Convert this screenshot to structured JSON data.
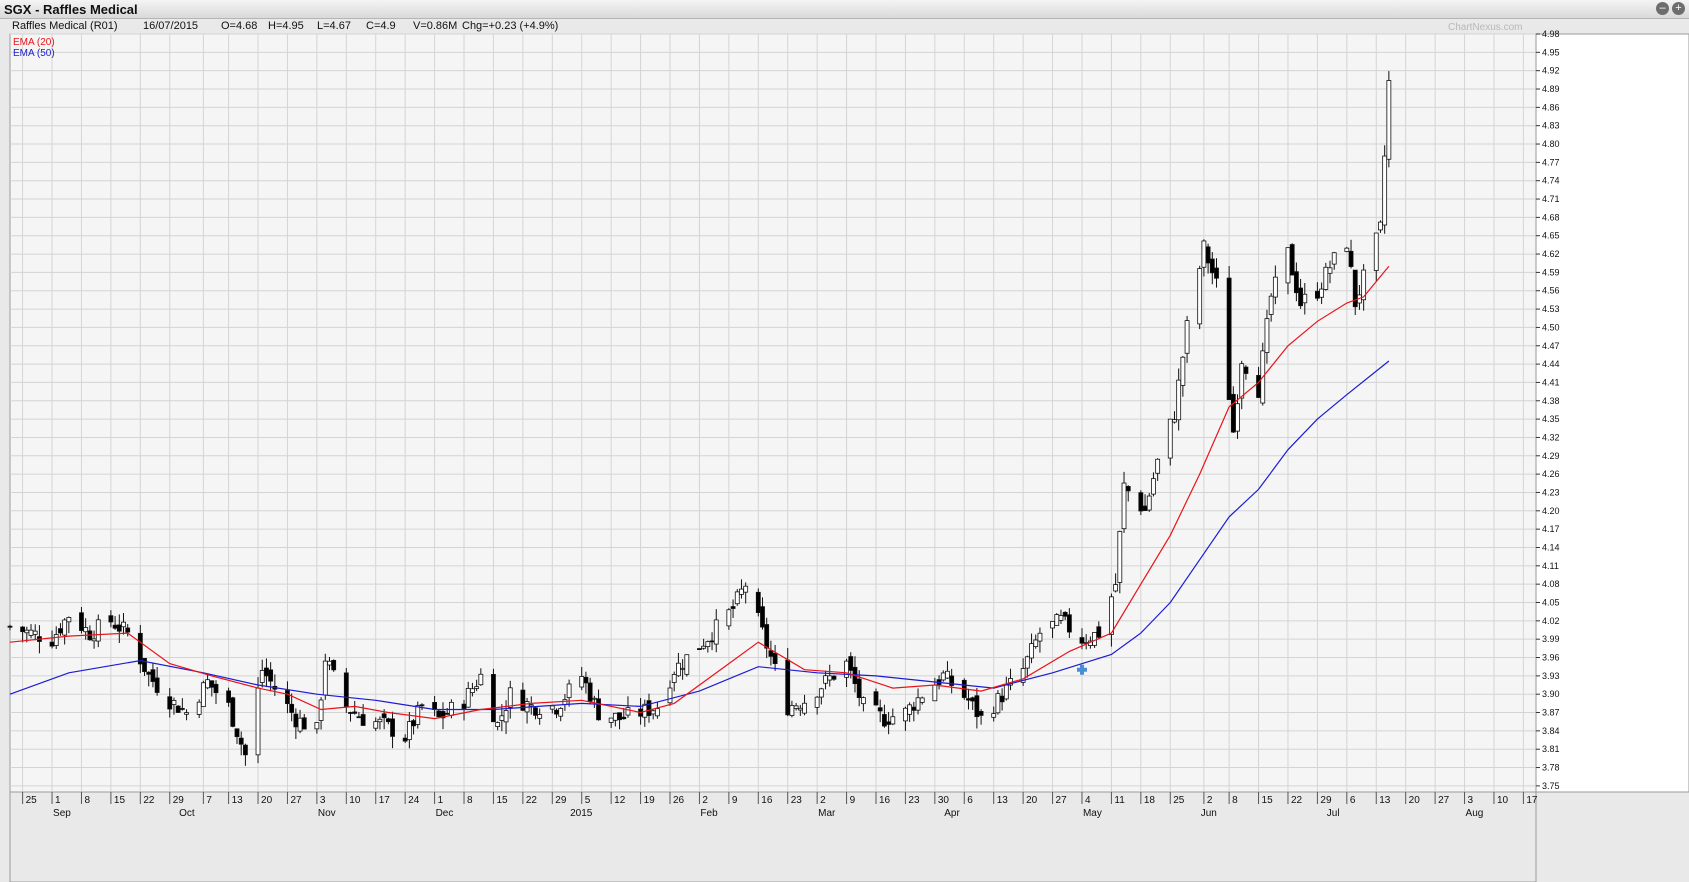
{
  "window": {
    "title": "SGX - Raffles Medical",
    "btn_min": "–",
    "btn_max": "+"
  },
  "info": {
    "name": "Raffles Medical (R01)",
    "date": "16/07/2015",
    "open": "O=4.68",
    "high": "H=4.95",
    "low": "L=4.67",
    "close": "C=4.9",
    "volume": "V=0.86M",
    "change": "Chg=+0.23 (+4.9%)"
  },
  "watermark": "ChartNexus.com",
  "colors": {
    "up": "#ffffff",
    "down": "#000000",
    "ema20": "#e8141a",
    "ema50": "#1c1cd2",
    "grid": "#d4d4d4",
    "bg": "#f5f5f5"
  },
  "chart_data": {
    "type": "candlestick",
    "ylim": [
      3.74,
      4.98
    ],
    "y_ticks": [
      "4.98",
      "4.95",
      "4.92",
      "4.89",
      "4.86",
      "4.83",
      "4.80",
      "4.77",
      "4.74",
      "4.71",
      "4.68",
      "4.65",
      "4.62",
      "4.59",
      "4.56",
      "4.53",
      "4.50",
      "4.47",
      "4.44",
      "4.41",
      "4.38",
      "4.35",
      "4.32",
      "4.29",
      "4.26",
      "4.23",
      "4.20",
      "4.17",
      "4.14",
      "4.11",
      "4.08",
      "4.05",
      "4.02",
      "3.99",
      "3.96",
      "3.93",
      "3.90",
      "3.87",
      "3.84",
      "3.81",
      "3.78",
      "3.75"
    ],
    "x_ticks": [
      {
        "day": "25",
        "date": "2014-08-25"
      },
      {
        "day": "1",
        "date": "2014-09-01"
      },
      {
        "day": "8",
        "date": "2014-09-08"
      },
      {
        "day": "15",
        "date": "2014-09-15"
      },
      {
        "day": "22",
        "date": "2014-09-22"
      },
      {
        "day": "29",
        "date": "2014-09-29"
      },
      {
        "day": "7",
        "date": "2014-10-07"
      },
      {
        "day": "13",
        "date": "2014-10-13"
      },
      {
        "day": "20",
        "date": "2014-10-20"
      },
      {
        "day": "27",
        "date": "2014-10-27"
      },
      {
        "day": "3",
        "date": "2014-11-03"
      },
      {
        "day": "10",
        "date": "2014-11-10"
      },
      {
        "day": "17",
        "date": "2014-11-17"
      },
      {
        "day": "24",
        "date": "2014-11-24"
      },
      {
        "day": "1",
        "date": "2014-12-01"
      },
      {
        "day": "8",
        "date": "2014-12-08"
      },
      {
        "day": "15",
        "date": "2014-12-15"
      },
      {
        "day": "22",
        "date": "2014-12-22"
      },
      {
        "day": "29",
        "date": "2014-12-29"
      },
      {
        "day": "5",
        "date": "2015-01-05"
      },
      {
        "day": "12",
        "date": "2015-01-12"
      },
      {
        "day": "19",
        "date": "2015-01-19"
      },
      {
        "day": "26",
        "date": "2015-01-26"
      },
      {
        "day": "2",
        "date": "2015-02-02"
      },
      {
        "day": "9",
        "date": "2015-02-09"
      },
      {
        "day": "16",
        "date": "2015-02-16"
      },
      {
        "day": "23",
        "date": "2015-02-23"
      },
      {
        "day": "2",
        "date": "2015-03-02"
      },
      {
        "day": "9",
        "date": "2015-03-09"
      },
      {
        "day": "16",
        "date": "2015-03-16"
      },
      {
        "day": "23",
        "date": "2015-03-23"
      },
      {
        "day": "30",
        "date": "2015-03-30"
      },
      {
        "day": "6",
        "date": "2015-04-06"
      },
      {
        "day": "13",
        "date": "2015-04-13"
      },
      {
        "day": "20",
        "date": "2015-04-20"
      },
      {
        "day": "27",
        "date": "2015-04-27"
      },
      {
        "day": "4",
        "date": "2015-05-04"
      },
      {
        "day": "11",
        "date": "2015-05-11"
      },
      {
        "day": "18",
        "date": "2015-05-18"
      },
      {
        "day": "25",
        "date": "2015-05-25"
      },
      {
        "day": "2",
        "date": "2015-06-02"
      },
      {
        "day": "8",
        "date": "2015-06-08"
      },
      {
        "day": "15",
        "date": "2015-06-15"
      },
      {
        "day": "22",
        "date": "2015-06-22"
      },
      {
        "day": "29",
        "date": "2015-06-29"
      },
      {
        "day": "6",
        "date": "2015-07-06"
      },
      {
        "day": "13",
        "date": "2015-07-13"
      },
      {
        "day": "20",
        "date": "2015-07-20"
      },
      {
        "day": "27",
        "date": "2015-07-27"
      },
      {
        "day": "3",
        "date": "2015-08-03"
      },
      {
        "day": "10",
        "date": "2015-08-10"
      },
      {
        "day": "17",
        "date": "2015-08-17"
      }
    ],
    "months": [
      {
        "label": "Sep",
        "date": "2014-09-01"
      },
      {
        "label": "Oct",
        "date": "2014-10-01"
      },
      {
        "label": "Nov",
        "date": "2014-11-03"
      },
      {
        "label": "Dec",
        "date": "2014-12-01"
      },
      {
        "label": "2015",
        "date": "2015-01-02"
      },
      {
        "label": "Feb",
        "date": "2015-02-02"
      },
      {
        "label": "Mar",
        "date": "2015-03-02"
      },
      {
        "label": "Apr",
        "date": "2015-04-01"
      },
      {
        "label": "May",
        "date": "2015-05-04"
      },
      {
        "label": "Jun",
        "date": "2015-06-01"
      },
      {
        "label": "Jul",
        "date": "2015-07-01"
      },
      {
        "label": "Aug",
        "date": "2015-08-03"
      }
    ],
    "x_start": "2014-08-22",
    "x_end": "2015-08-20",
    "legend": [
      {
        "name": "EMA (20)",
        "color": "#e8141a"
      },
      {
        "name": "EMA (50)",
        "color": "#1c1cd2"
      }
    ],
    "close_trace": [
      [
        "2014-08-22",
        4.01
      ],
      [
        "2014-09-01",
        3.99
      ],
      [
        "2014-09-05",
        4.03
      ],
      [
        "2014-09-10",
        4.0
      ],
      [
        "2014-09-15",
        4.02
      ],
      [
        "2014-09-19",
        4.0
      ],
      [
        "2014-09-24",
        3.93
      ],
      [
        "2014-09-29",
        3.89
      ],
      [
        "2014-10-03",
        3.87
      ],
      [
        "2014-10-08",
        3.92
      ],
      [
        "2014-10-13",
        3.88
      ],
      [
        "2014-10-17",
        3.8
      ],
      [
        "2014-10-21",
        3.94
      ],
      [
        "2014-10-24",
        3.91
      ],
      [
        "2014-10-29",
        3.86
      ],
      [
        "2014-11-03",
        3.84
      ],
      [
        "2014-11-05",
        3.96
      ],
      [
        "2014-11-10",
        3.88
      ],
      [
        "2014-11-14",
        3.86
      ],
      [
        "2014-11-19",
        3.85
      ],
      [
        "2014-11-24",
        3.83
      ],
      [
        "2014-11-28",
        3.88
      ],
      [
        "2014-12-02",
        3.86
      ],
      [
        "2014-12-08",
        3.89
      ],
      [
        "2014-12-12",
        3.93
      ],
      [
        "2014-12-16",
        3.85
      ],
      [
        "2014-12-19",
        3.9
      ],
      [
        "2014-12-24",
        3.88
      ],
      [
        "2014-12-30",
        3.88
      ],
      [
        "2015-01-05",
        3.93
      ],
      [
        "2015-01-09",
        3.87
      ],
      [
        "2015-01-14",
        3.86
      ],
      [
        "2015-01-19",
        3.87
      ],
      [
        "2015-01-23",
        3.88
      ],
      [
        "2015-01-27",
        3.94
      ],
      [
        "2015-02-02",
        3.98
      ],
      [
        "2015-02-05",
        4.0
      ],
      [
        "2015-02-10",
        4.04
      ],
      [
        "2015-02-13",
        4.08
      ],
      [
        "2015-02-17",
        4.0
      ],
      [
        "2015-02-23",
        3.88
      ],
      [
        "2015-02-27",
        3.89
      ],
      [
        "2015-03-04",
        3.92
      ],
      [
        "2015-03-09",
        3.95
      ],
      [
        "2015-03-13",
        3.88
      ],
      [
        "2015-03-18",
        3.86
      ],
      [
        "2015-03-23",
        3.87
      ],
      [
        "2015-03-27",
        3.9
      ],
      [
        "2015-04-01",
        3.93
      ],
      [
        "2015-04-07",
        3.89
      ],
      [
        "2015-04-10",
        3.86
      ],
      [
        "2015-04-14",
        3.89
      ],
      [
        "2015-04-20",
        3.94
      ],
      [
        "2015-04-24",
        4.0
      ],
      [
        "2015-04-29",
        4.02
      ],
      [
        "2015-05-04",
        3.99
      ],
      [
        "2015-05-08",
        4.0
      ],
      [
        "2015-05-12",
        4.08
      ],
      [
        "2015-05-14",
        4.24
      ],
      [
        "2015-05-19",
        4.2
      ],
      [
        "2015-05-22",
        4.28
      ],
      [
        "2015-05-26",
        4.36
      ],
      [
        "2015-05-29",
        4.5
      ],
      [
        "2015-06-02",
        4.63
      ],
      [
        "2015-06-05",
        4.57
      ],
      [
        "2015-06-09",
        4.33
      ],
      [
        "2015-06-11",
        4.45
      ],
      [
        "2015-06-15",
        4.4
      ],
      [
        "2015-06-18",
        4.55
      ],
      [
        "2015-06-22",
        4.62
      ],
      [
        "2015-06-25",
        4.54
      ],
      [
        "2015-06-29",
        4.56
      ],
      [
        "2015-07-02",
        4.6
      ],
      [
        "2015-07-06",
        4.64
      ],
      [
        "2015-07-08",
        4.54
      ],
      [
        "2015-07-10",
        4.58
      ],
      [
        "2015-07-14",
        4.66
      ],
      [
        "2015-07-16",
        4.9
      ]
    ],
    "ema20": [
      [
        "2014-08-22",
        3.985
      ],
      [
        "2014-09-05",
        3.995
      ],
      [
        "2014-09-19",
        4.0
      ],
      [
        "2014-09-29",
        3.95
      ],
      [
        "2014-10-09",
        3.93
      ],
      [
        "2014-10-20",
        3.91
      ],
      [
        "2014-10-27",
        3.9
      ],
      [
        "2014-11-04",
        3.875
      ],
      [
        "2014-11-12",
        3.88
      ],
      [
        "2014-11-20",
        3.87
      ],
      [
        "2014-12-01",
        3.86
      ],
      [
        "2014-12-12",
        3.875
      ],
      [
        "2014-12-24",
        3.885
      ],
      [
        "2015-01-05",
        3.89
      ],
      [
        "2015-01-19",
        3.87
      ],
      [
        "2015-01-27",
        3.885
      ],
      [
        "2015-02-09",
        3.95
      ],
      [
        "2015-02-16",
        3.985
      ],
      [
        "2015-02-27",
        3.94
      ],
      [
        "2015-03-09",
        3.935
      ],
      [
        "2015-03-20",
        3.91
      ],
      [
        "2015-03-30",
        3.915
      ],
      [
        "2015-04-10",
        3.905
      ],
      [
        "2015-04-20",
        3.925
      ],
      [
        "2015-05-01",
        3.97
      ],
      [
        "2015-05-11",
        4.0
      ],
      [
        "2015-05-18",
        4.08
      ],
      [
        "2015-05-25",
        4.16
      ],
      [
        "2015-06-01",
        4.26
      ],
      [
        "2015-06-08",
        4.37
      ],
      [
        "2015-06-15",
        4.41
      ],
      [
        "2015-06-22",
        4.47
      ],
      [
        "2015-06-29",
        4.51
      ],
      [
        "2015-07-06",
        4.54
      ],
      [
        "2015-07-10",
        4.55
      ],
      [
        "2015-07-16",
        4.6
      ]
    ],
    "ema50": [
      [
        "2014-08-22",
        3.9
      ],
      [
        "2014-09-05",
        3.935
      ],
      [
        "2014-09-22",
        3.955
      ],
      [
        "2014-10-07",
        3.935
      ],
      [
        "2014-10-20",
        3.915
      ],
      [
        "2014-11-03",
        3.9
      ],
      [
        "2014-11-17",
        3.89
      ],
      [
        "2014-12-01",
        3.875
      ],
      [
        "2014-12-15",
        3.875
      ],
      [
        "2015-01-05",
        3.885
      ],
      [
        "2015-01-19",
        3.88
      ],
      [
        "2015-02-02",
        3.905
      ],
      [
        "2015-02-16",
        3.945
      ],
      [
        "2015-03-02",
        3.935
      ],
      [
        "2015-03-16",
        3.93
      ],
      [
        "2015-03-30",
        3.92
      ],
      [
        "2015-04-13",
        3.91
      ],
      [
        "2015-04-27",
        3.935
      ],
      [
        "2015-05-11",
        3.965
      ],
      [
        "2015-05-18",
        4.0
      ],
      [
        "2015-05-25",
        4.05
      ],
      [
        "2015-06-01",
        4.12
      ],
      [
        "2015-06-08",
        4.19
      ],
      [
        "2015-06-15",
        4.235
      ],
      [
        "2015-06-22",
        4.3
      ],
      [
        "2015-06-29",
        4.35
      ],
      [
        "2015-07-06",
        4.39
      ],
      [
        "2015-07-16",
        4.445
      ]
    ]
  }
}
